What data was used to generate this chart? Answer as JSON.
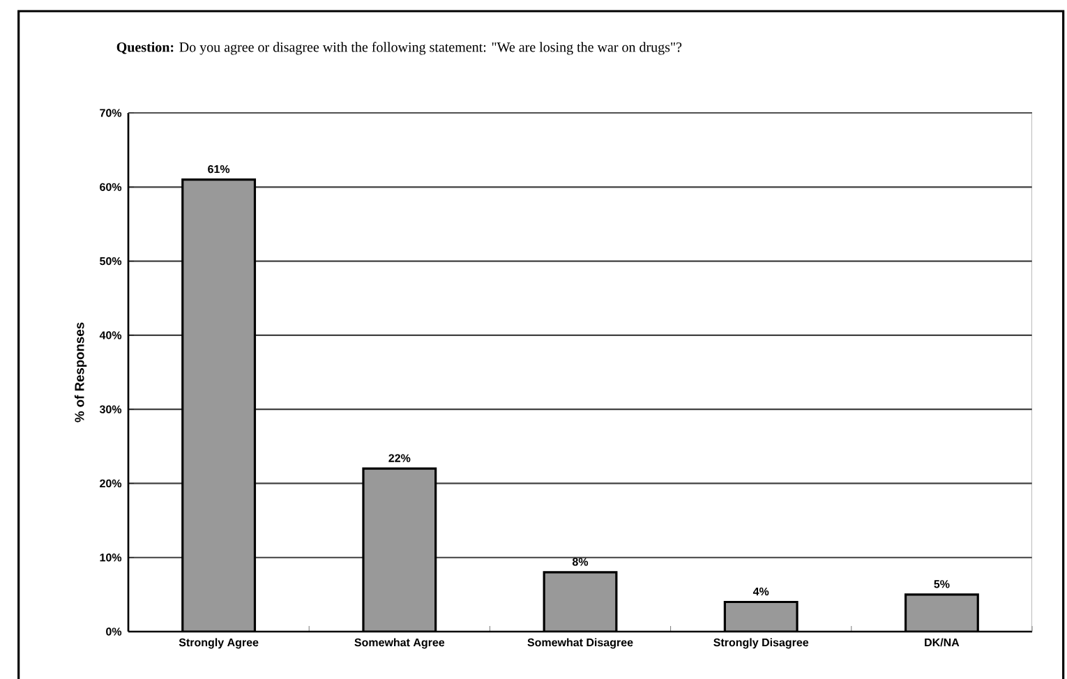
{
  "chart_data": {
    "type": "bar",
    "title": "**Question:** Do you agree or disagree with the following statement: \"We are losing the war on drugs\"?",
    "ylabel": "% of Responses",
    "categories": [
      "Strongly Agree",
      "Somewhat Agree",
      "Somewhat Disagree",
      "Strongly Disagree",
      "DK/NA"
    ],
    "values": [
      61,
      22,
      8,
      4,
      5
    ],
    "color": "#999999",
    "value_labels": [
      "61%",
      "22%",
      "8%",
      "4%",
      "5%"
    ],
    "ylim": [
      0,
      70
    ],
    "yticks": [
      {
        "value": 0,
        "label": "0%"
      },
      {
        "value": 10,
        "label": "10%"
      },
      {
        "value": 20,
        "label": "20%"
      },
      {
        "value": 30,
        "label": "30%"
      },
      {
        "value": 40,
        "label": "40%"
      },
      {
        "value": 50,
        "label": "50%"
      },
      {
        "value": 60,
        "label": "60%"
      },
      {
        "value": 70,
        "label": "70%"
      }
    ],
    "grid": "y"
  }
}
